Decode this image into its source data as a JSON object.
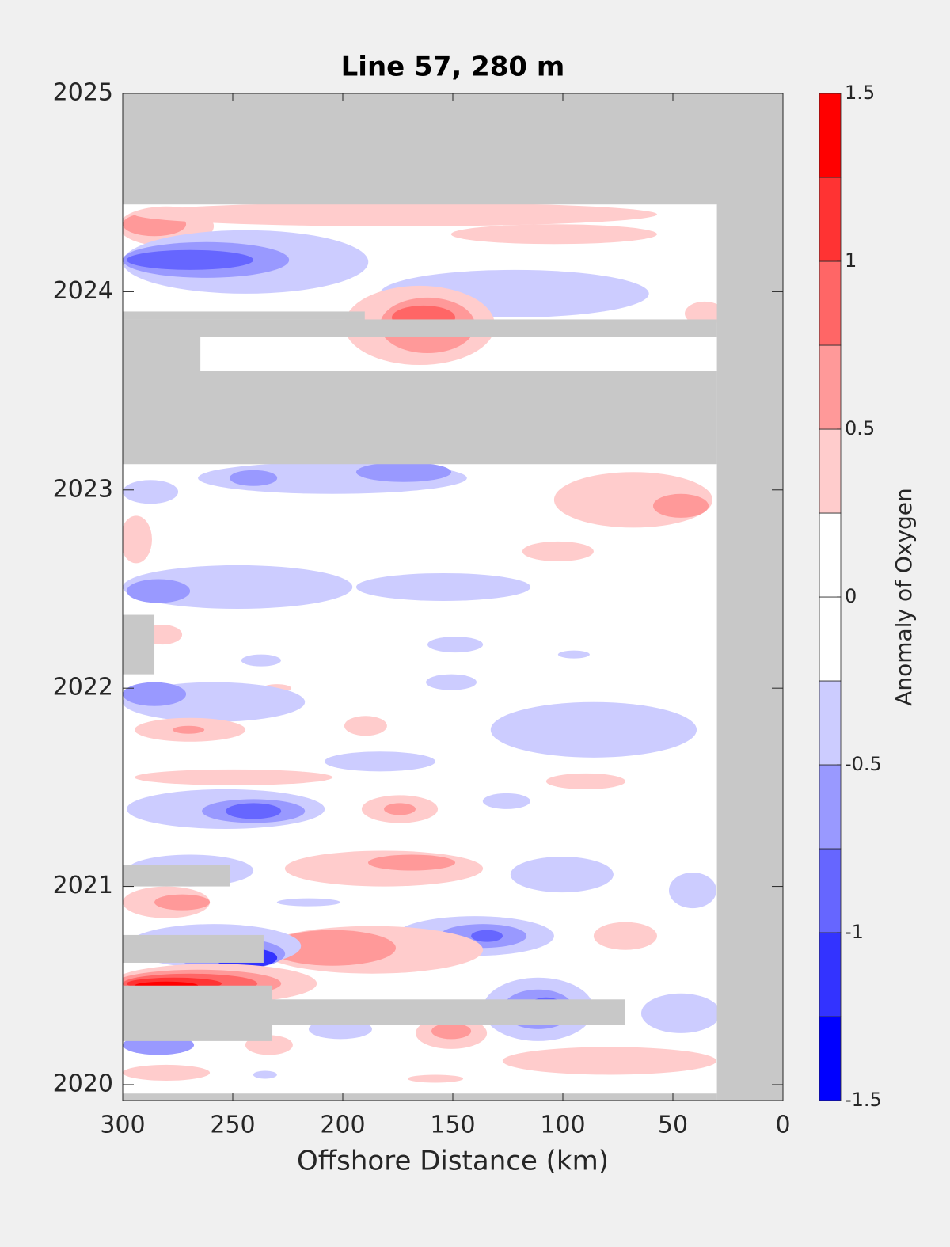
{
  "chart_data": {
    "type": "contour",
    "title": "Line 57, 280 m",
    "x_label": "Offshore Distance (km)",
    "xlim": [
      300,
      0
    ],
    "xticks": [
      300,
      250,
      200,
      150,
      100,
      50,
      0
    ],
    "ylim": [
      2019.92,
      2025
    ],
    "yticks": [
      2020,
      2021,
      2022,
      2023,
      2024,
      2025
    ],
    "colorbar_label": "Anomaly of Oxygen",
    "levels": [
      -1.5,
      -1.25,
      -1,
      -0.75,
      -0.5,
      -0.25,
      0,
      0.25,
      0.5,
      0.75,
      1,
      1.25,
      1.5
    ],
    "colorbar_ticks": [
      -1.5,
      -1,
      -0.5,
      0,
      0.5,
      1,
      1.5
    ],
    "colors": [
      "#0000ff",
      "#3333ff",
      "#6666ff",
      "#9999ff",
      "#ccccff",
      "#ffffff",
      "#ffffff",
      "#ffcccc",
      "#ff9999",
      "#ff6666",
      "#ff3333",
      "#ff0000"
    ],
    "no_data_color": "#c8c8c8",
    "anomalies": [
      {
        "x": 280.2,
        "y": 2024.33,
        "rx": 21.6,
        "ry": 0.1,
        "value": 0.375
      },
      {
        "x": 285.6,
        "y": 2024.34,
        "rx": 14.4,
        "ry": 0.06,
        "value": 0.625
      },
      {
        "x": 175.9,
        "y": 2024.39,
        "rx": 118.7,
        "ry": 0.06,
        "value": 0.375
      },
      {
        "x": 104,
        "y": 2024.29,
        "rx": 46.8,
        "ry": 0.05,
        "value": 0.375
      },
      {
        "x": 244.2,
        "y": 2024.15,
        "rx": 55.8,
        "ry": 0.16,
        "value": -0.375
      },
      {
        "x": 262.2,
        "y": 2024.16,
        "rx": 37.8,
        "ry": 0.09,
        "value": -0.625
      },
      {
        "x": 269.4,
        "y": 2024.16,
        "rx": 28.8,
        "ry": 0.05,
        "value": -0.875
      },
      {
        "x": 122,
        "y": 2023.99,
        "rx": 61.1,
        "ry": 0.12,
        "value": -0.375
      },
      {
        "x": 165.1,
        "y": 2023.83,
        "rx": 34.2,
        "ry": 0.2,
        "value": 0.375
      },
      {
        "x": 161.5,
        "y": 2023.83,
        "rx": 21.6,
        "ry": 0.14,
        "value": 0.625
      },
      {
        "x": 163.3,
        "y": 2023.87,
        "rx": 14.4,
        "ry": 0.06,
        "value": 0.875
      },
      {
        "x": 35.6,
        "y": 2023.89,
        "rx": 9,
        "ry": 0.06,
        "value": 0.375
      },
      {
        "x": 204.7,
        "y": 2023.06,
        "rx": 61.1,
        "ry": 0.08,
        "value": -0.375
      },
      {
        "x": 172.3,
        "y": 2023.09,
        "rx": 21.6,
        "ry": 0.05,
        "value": -0.625
      },
      {
        "x": 240.6,
        "y": 2023.06,
        "rx": 10.8,
        "ry": 0.04,
        "value": -0.625
      },
      {
        "x": 287.4,
        "y": 2022.99,
        "rx": 12.6,
        "ry": 0.06,
        "value": -0.375
      },
      {
        "x": 68,
        "y": 2022.95,
        "rx": 36,
        "ry": 0.14,
        "value": 0.375
      },
      {
        "x": 46.4,
        "y": 2022.92,
        "rx": 12.6,
        "ry": 0.06,
        "value": 0.625
      },
      {
        "x": 293.9,
        "y": 2022.75,
        "rx": 7.2,
        "ry": 0.12,
        "value": 0.375
      },
      {
        "x": 102.2,
        "y": 2022.69,
        "rx": 16.2,
        "ry": 0.05,
        "value": 0.375
      },
      {
        "x": 247.8,
        "y": 2022.51,
        "rx": 52.2,
        "ry": 0.11,
        "value": -0.375
      },
      {
        "x": 283.8,
        "y": 2022.49,
        "rx": 14.4,
        "ry": 0.06,
        "value": -0.625
      },
      {
        "x": 154.3,
        "y": 2022.51,
        "rx": 39.6,
        "ry": 0.07,
        "value": -0.375
      },
      {
        "x": 282,
        "y": 2022.27,
        "rx": 9,
        "ry": 0.05,
        "value": 0.375
      },
      {
        "x": 148.9,
        "y": 2022.22,
        "rx": 12.6,
        "ry": 0.04,
        "value": -0.375
      },
      {
        "x": 237.1,
        "y": 2022.14,
        "rx": 9,
        "ry": 0.03,
        "value": -0.375
      },
      {
        "x": 150.7,
        "y": 2022.03,
        "rx": 11.5,
        "ry": 0.04,
        "value": -0.375
      },
      {
        "x": 95,
        "y": 2022.17,
        "rx": 7.2,
        "ry": 0.02,
        "value": -0.375
      },
      {
        "x": 229.9,
        "y": 2022.0,
        "rx": 6.5,
        "ry": 0.02,
        "value": 0.375
      },
      {
        "x": 258.6,
        "y": 2021.93,
        "rx": 41.4,
        "ry": 0.1,
        "value": -0.375
      },
      {
        "x": 285.6,
        "y": 2021.97,
        "rx": 14.4,
        "ry": 0.06,
        "value": -0.625
      },
      {
        "x": 269.4,
        "y": 2021.79,
        "rx": 25.2,
        "ry": 0.06,
        "value": 0.375
      },
      {
        "x": 270.1,
        "y": 2021.79,
        "rx": 7.2,
        "ry": 0.02,
        "value": 0.625
      },
      {
        "x": 189.6,
        "y": 2021.81,
        "rx": 9.7,
        "ry": 0.05,
        "value": 0.375
      },
      {
        "x": 86,
        "y": 2021.79,
        "rx": 46.8,
        "ry": 0.14,
        "value": -0.375
      },
      {
        "x": 183.1,
        "y": 2021.63,
        "rx": 25.2,
        "ry": 0.05,
        "value": -0.375
      },
      {
        "x": 249.6,
        "y": 2021.55,
        "rx": 45,
        "ry": 0.04,
        "value": 0.375
      },
      {
        "x": 89.6,
        "y": 2021.53,
        "rx": 18,
        "ry": 0.04,
        "value": 0.375
      },
      {
        "x": 253.2,
        "y": 2021.39,
        "rx": 45,
        "ry": 0.1,
        "value": -0.375
      },
      {
        "x": 240.6,
        "y": 2021.38,
        "rx": 23.4,
        "ry": 0.06,
        "value": -0.625
      },
      {
        "x": 240.6,
        "y": 2021.38,
        "rx": 12.6,
        "ry": 0.04,
        "value": -0.875
      },
      {
        "x": 174.1,
        "y": 2021.39,
        "rx": 17.3,
        "ry": 0.07,
        "value": 0.375
      },
      {
        "x": 174.1,
        "y": 2021.39,
        "rx": 7.2,
        "ry": 0.03,
        "value": 0.625
      },
      {
        "x": 125.6,
        "y": 2021.43,
        "rx": 10.8,
        "ry": 0.04,
        "value": -0.375
      },
      {
        "x": 269.4,
        "y": 2021.08,
        "rx": 28.8,
        "ry": 0.08,
        "value": -0.375
      },
      {
        "x": 181.3,
        "y": 2021.09,
        "rx": 45,
        "ry": 0.09,
        "value": 0.375
      },
      {
        "x": 168.7,
        "y": 2021.12,
        "rx": 19.8,
        "ry": 0.04,
        "value": 0.625
      },
      {
        "x": 100.4,
        "y": 2021.06,
        "rx": 23.4,
        "ry": 0.09,
        "value": -0.375
      },
      {
        "x": 41,
        "y": 2020.98,
        "rx": 10.8,
        "ry": 0.09,
        "value": -0.375
      },
      {
        "x": 280.2,
        "y": 2020.92,
        "rx": 19.8,
        "ry": 0.08,
        "value": 0.375
      },
      {
        "x": 273,
        "y": 2020.92,
        "rx": 12.6,
        "ry": 0.04,
        "value": 0.625
      },
      {
        "x": 215.5,
        "y": 2020.92,
        "rx": 14.4,
        "ry": 0.02,
        "value": -0.375
      },
      {
        "x": 140,
        "y": 2020.75,
        "rx": 36,
        "ry": 0.1,
        "value": -0.375
      },
      {
        "x": 136.3,
        "y": 2020.75,
        "rx": 19.8,
        "ry": 0.06,
        "value": -0.625
      },
      {
        "x": 134.5,
        "y": 2020.75,
        "rx": 7.2,
        "ry": 0.03,
        "value": -0.875
      },
      {
        "x": 71.6,
        "y": 2020.75,
        "rx": 14.4,
        "ry": 0.07,
        "value": 0.375
      },
      {
        "x": 186.7,
        "y": 2020.68,
        "rx": 50.4,
        "ry": 0.12,
        "value": 0.375
      },
      {
        "x": 204.7,
        "y": 2020.69,
        "rx": 28.8,
        "ry": 0.09,
        "value": 0.625
      },
      {
        "x": 258.6,
        "y": 2020.7,
        "rx": 39.6,
        "ry": 0.11,
        "value": -0.375
      },
      {
        "x": 251.4,
        "y": 2020.66,
        "rx": 25.2,
        "ry": 0.08,
        "value": -0.625
      },
      {
        "x": 244.2,
        "y": 2020.64,
        "rx": 14.4,
        "ry": 0.05,
        "value": -1.125
      },
      {
        "x": 258.6,
        "y": 2020.51,
        "rx": 46.8,
        "ry": 0.1,
        "value": 0.375
      },
      {
        "x": 265.8,
        "y": 2020.51,
        "rx": 37.8,
        "ry": 0.07,
        "value": 0.625
      },
      {
        "x": 269.4,
        "y": 2020.51,
        "rx": 30.6,
        "ry": 0.05,
        "value": 0.875
      },
      {
        "x": 276.6,
        "y": 2020.51,
        "rx": 21.6,
        "ry": 0.03,
        "value": 1.125
      },
      {
        "x": 280.2,
        "y": 2020.5,
        "rx": 14.4,
        "ry": 0.02,
        "value": 1.375
      },
      {
        "x": 111.2,
        "y": 2020.38,
        "rx": 25.2,
        "ry": 0.16,
        "value": -0.375
      },
      {
        "x": 111.2,
        "y": 2020.38,
        "rx": 16.2,
        "ry": 0.1,
        "value": -0.625
      },
      {
        "x": 107.6,
        "y": 2020.38,
        "rx": 9,
        "ry": 0.06,
        "value": -0.875
      },
      {
        "x": 46.4,
        "y": 2020.36,
        "rx": 18,
        "ry": 0.1,
        "value": -0.375
      },
      {
        "x": 150.7,
        "y": 2020.26,
        "rx": 16.2,
        "ry": 0.08,
        "value": 0.375
      },
      {
        "x": 150.7,
        "y": 2020.27,
        "rx": 9,
        "ry": 0.04,
        "value": 0.625
      },
      {
        "x": 201.1,
        "y": 2020.28,
        "rx": 14.4,
        "ry": 0.05,
        "value": -0.375
      },
      {
        "x": 283.8,
        "y": 2020.2,
        "rx": 16.2,
        "ry": 0.05,
        "value": -0.625
      },
      {
        "x": 280.2,
        "y": 2020.06,
        "rx": 19.8,
        "ry": 0.04,
        "value": 0.375
      },
      {
        "x": 233.5,
        "y": 2020.2,
        "rx": 10.8,
        "ry": 0.05,
        "value": 0.375
      },
      {
        "x": 78.8,
        "y": 2020.12,
        "rx": 48.6,
        "ry": 0.07,
        "value": 0.375
      },
      {
        "x": 157.9,
        "y": 2020.03,
        "rx": 12.6,
        "ry": 0.02,
        "value": 0.375
      },
      {
        "x": 235.3,
        "y": 2020.05,
        "rx": 5.4,
        "ry": 0.02,
        "value": -0.375
      }
    ],
    "no_data": [
      {
        "x0": 300,
        "x1": 0,
        "y0": 2024.44,
        "y1": 2025
      },
      {
        "x0": 30,
        "x1": 0,
        "y0": 2019.92,
        "y1": 2025
      },
      {
        "x0": 300,
        "x1": 30,
        "y0": 2019.92,
        "y1": 2019.955
      },
      {
        "x0": 300,
        "x1": 30,
        "y0": 2023.13,
        "y1": 2023.6
      },
      {
        "x0": 300,
        "x1": 264.7,
        "y0": 2023.6,
        "y1": 2023.77
      },
      {
        "x0": 300,
        "x1": 30,
        "y0": 2023.77,
        "y1": 2023.86
      },
      {
        "x0": 300,
        "x1": 190,
        "y0": 2023.86,
        "y1": 2023.9
      },
      {
        "x0": 300,
        "x1": 285.6,
        "y0": 2022.07,
        "y1": 2022.37
      },
      {
        "x0": 300,
        "x1": 251.4,
        "y0": 2021.0,
        "y1": 2021.11
      },
      {
        "x0": 300,
        "x1": 236,
        "y0": 2020.615,
        "y1": 2020.755
      },
      {
        "x0": 300,
        "x1": 232,
        "y0": 2020.22,
        "y1": 2020.5
      },
      {
        "x0": 300,
        "x1": 71.6,
        "y0": 2020.3,
        "y1": 2020.43
      }
    ]
  }
}
